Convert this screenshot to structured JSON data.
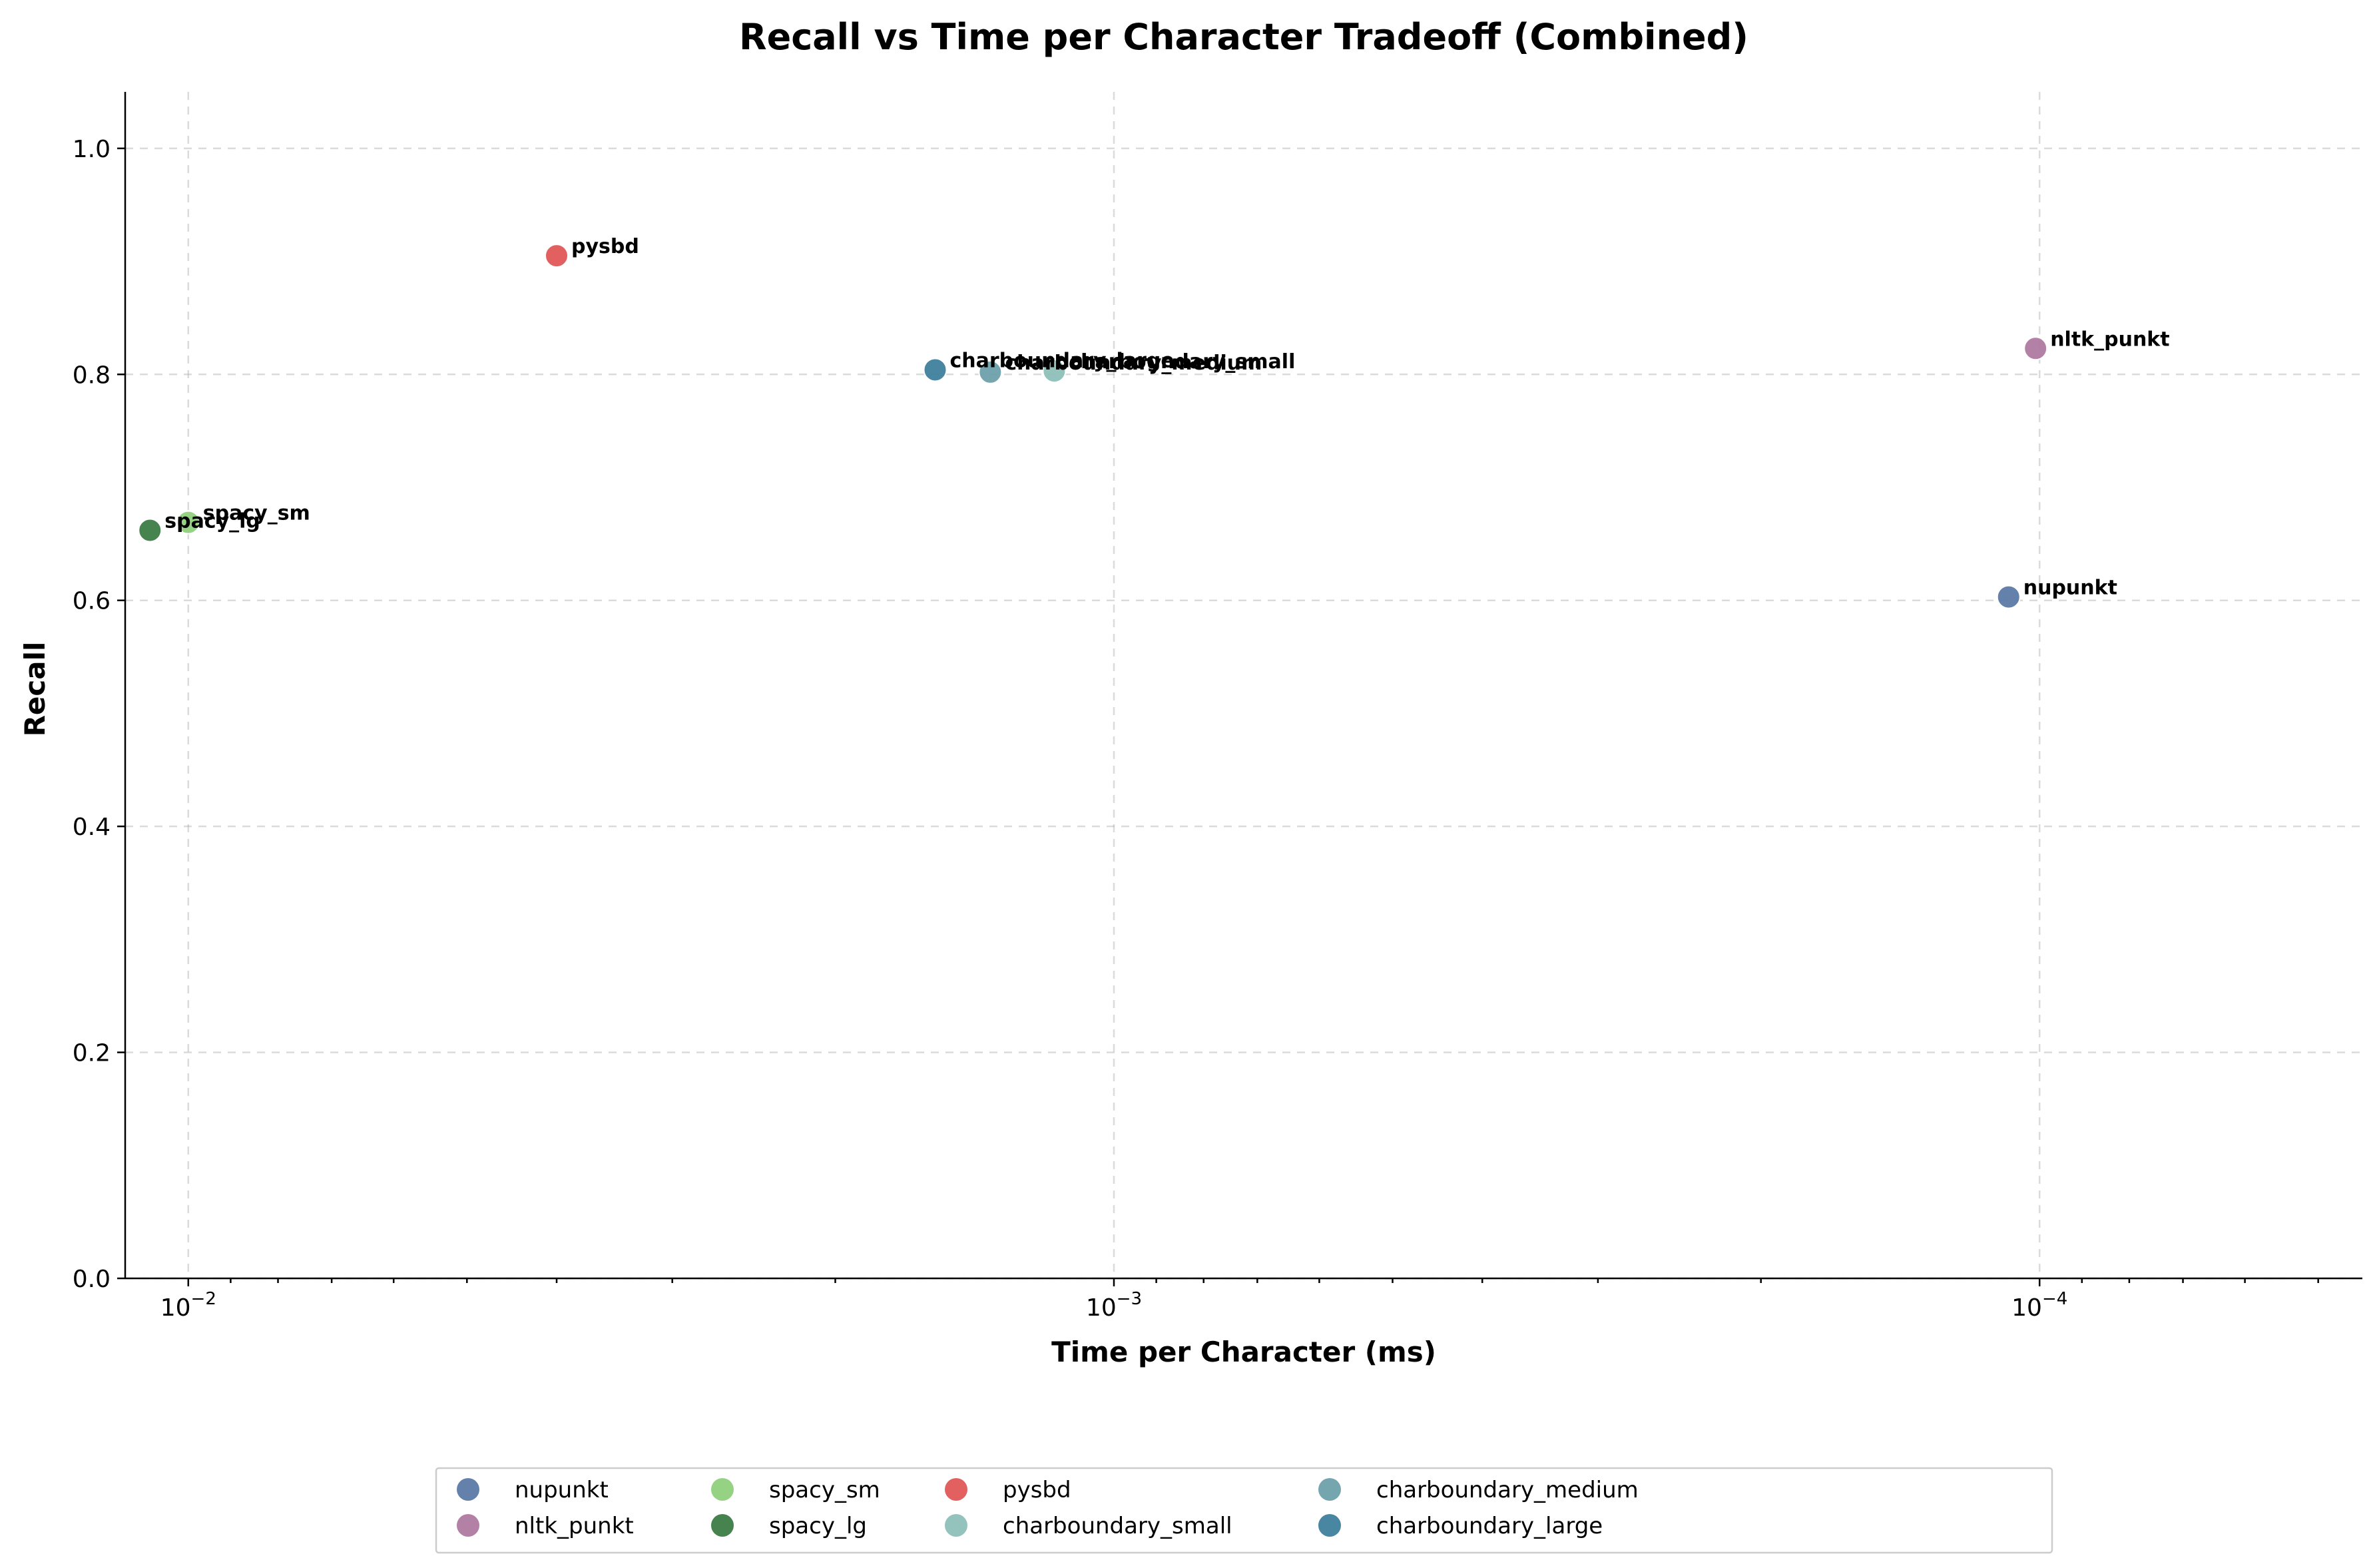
{
  "chart_data": {
    "type": "scatter",
    "title": "Recall vs Time per Character Tradeoff (Combined)",
    "xlabel": "Time per Character (ms)",
    "ylabel": "Recall",
    "x_scale": "log",
    "x_inverted": true,
    "xlim": [
      0.0117,
      4.48e-05
    ],
    "ylim": [
      0,
      1.05
    ],
    "x_ticks": [
      {
        "value": 0.01,
        "base": "10",
        "exp": "−2"
      },
      {
        "value": 0.001,
        "base": "10",
        "exp": "−3"
      },
      {
        "value": 0.0001,
        "base": "10",
        "exp": "−4"
      }
    ],
    "y_ticks": [
      {
        "value": 0.0,
        "label": "0.0"
      },
      {
        "value": 0.2,
        "label": "0.2"
      },
      {
        "value": 0.4,
        "label": "0.4"
      },
      {
        "value": 0.6,
        "label": "0.6"
      },
      {
        "value": 0.8,
        "label": "0.8"
      },
      {
        "value": 1.0,
        "label": "1.0"
      }
    ],
    "grid": true,
    "legend_position": "bottom-center",
    "series": [
      {
        "name": "nupunkt",
        "x": 0.000108,
        "y": 0.603,
        "color": "#5b7aa7"
      },
      {
        "name": "nltk_punkt",
        "x": 0.000101,
        "y": 0.823,
        "color": "#b07aa1"
      },
      {
        "name": "spacy_sm",
        "x": 0.01,
        "y": 0.669,
        "color": "#8fd07c"
      },
      {
        "name": "spacy_lg",
        "x": 0.011,
        "y": 0.662,
        "color": "#3c7c45"
      },
      {
        "name": "pysbd",
        "x": 0.004,
        "y": 0.905,
        "color": "#e15759"
      },
      {
        "name": "charboundary_small",
        "x": 0.00116,
        "y": 0.803,
        "color": "#8ebfb8"
      },
      {
        "name": "charboundary_medium",
        "x": 0.00136,
        "y": 0.802,
        "color": "#6ea0ab"
      },
      {
        "name": "charboundary_large",
        "x": 0.00156,
        "y": 0.804,
        "color": "#3f7f9c"
      }
    ]
  }
}
